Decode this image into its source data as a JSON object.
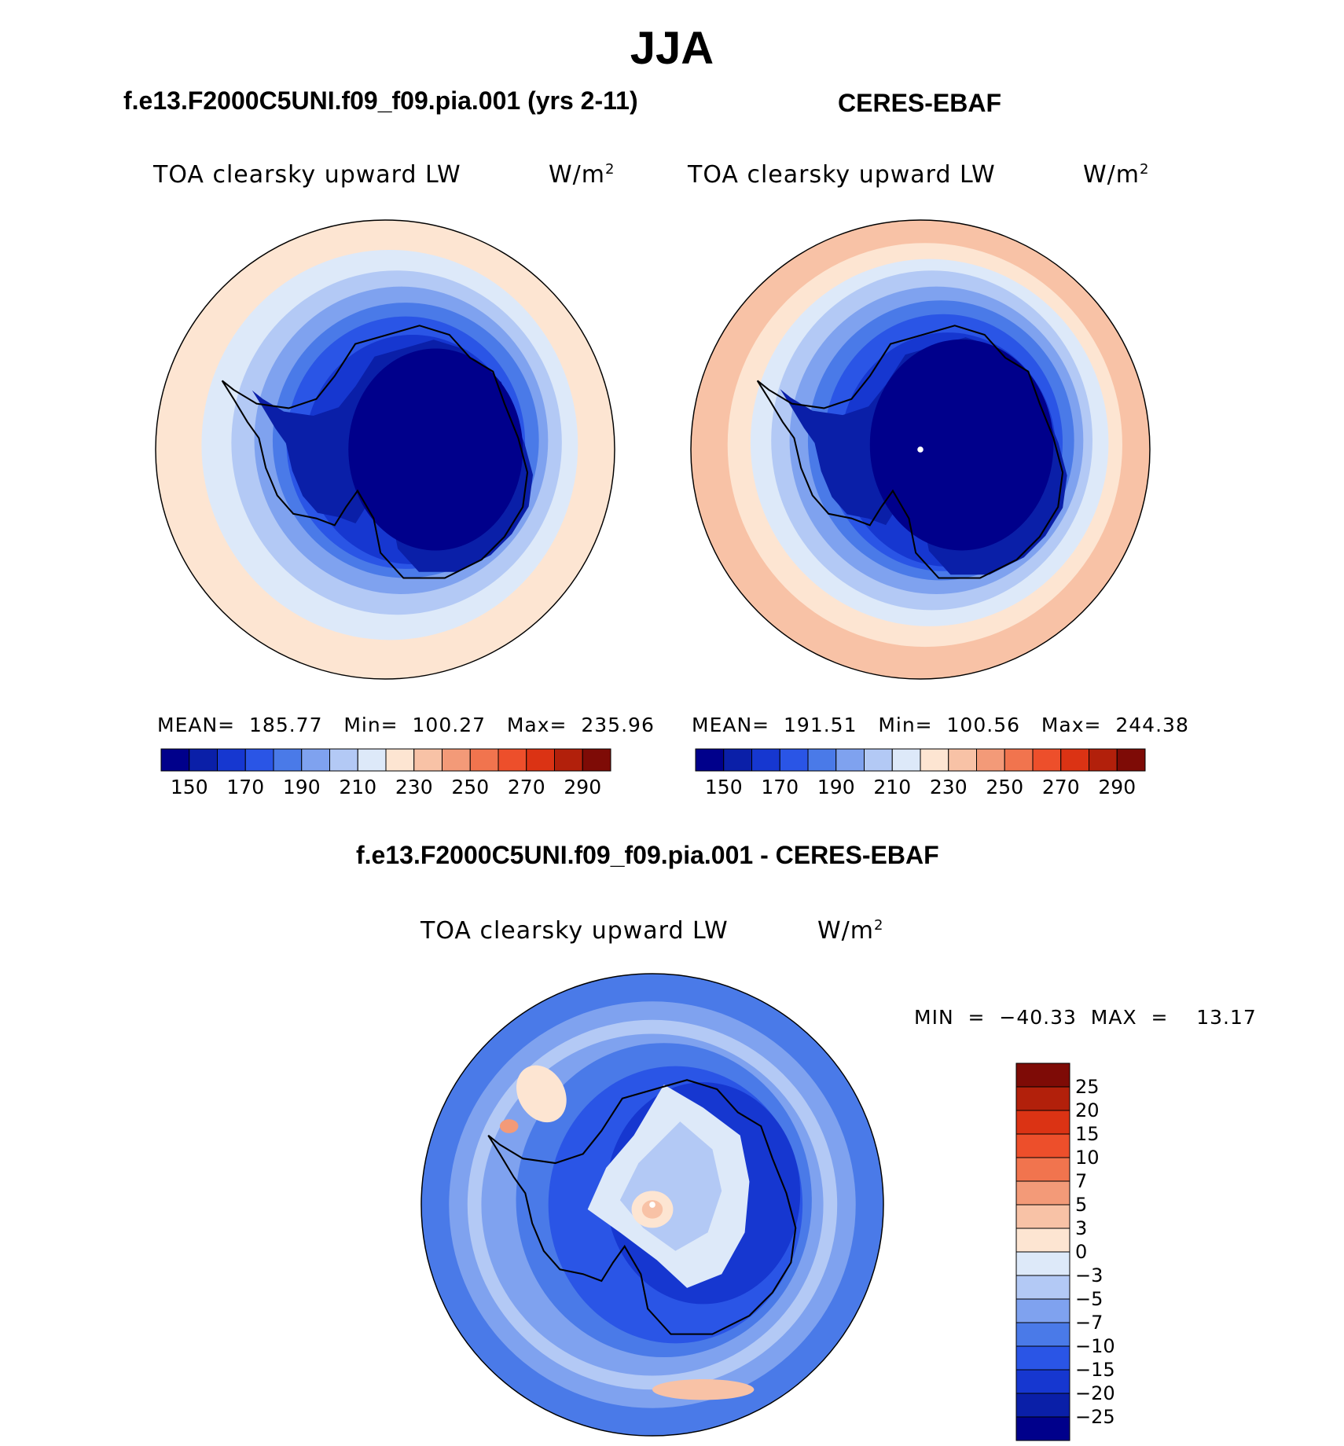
{
  "header": {
    "title": "JJA",
    "left_panel_title": "f.e13.F2000C5UNI.f09_f09.pia.001 (yrs 2-11)",
    "right_panel_title": "CERES-EBAF",
    "diff_panel_title": "f.e13.F2000C5UNI.f09_f09.pia.001 - CERES-EBAF"
  },
  "panels": {
    "model": {
      "variable": "TOA clearsky upward LW",
      "units_base": "W/m",
      "units_exp": "2",
      "stats": "MEAN=  185.77   Min=  100.27   Max=  235.96"
    },
    "obs": {
      "variable": "TOA clearsky upward LW",
      "units_base": "W/m",
      "units_exp": "2",
      "stats": "MEAN=  191.51   Min=  100.56   Max=  244.38"
    },
    "diff": {
      "variable": "TOA clearsky upward LW",
      "units_base": "W/m",
      "units_exp": "2",
      "stats": "MIN  =  −40.33  MAX  =    13.17"
    }
  },
  "colorbars": {
    "abs_labels": [
      "150",
      "170",
      "190",
      "210",
      "230",
      "250",
      "270",
      "290"
    ],
    "abs_colors": [
      "#00008b",
      "#0a1fa8",
      "#1637d0",
      "#2a55e6",
      "#4a7ae8",
      "#7fa2ef",
      "#b3c9f5",
      "#dde9f9",
      "#fde5d2",
      "#f8c2a6",
      "#f39a78",
      "#f1744e",
      "#ed4f2b",
      "#db3314",
      "#b2200b",
      "#7e0b06"
    ],
    "diff_labels": [
      "25",
      "20",
      "15",
      "10",
      "7",
      "5",
      "3",
      "0",
      "−3",
      "−5",
      "−7",
      "−10",
      "−15",
      "−20",
      "−25"
    ],
    "diff_colors": [
      "#7e0b06",
      "#b2200b",
      "#db3314",
      "#ed4f2b",
      "#f1744e",
      "#f39a78",
      "#f8c2a6",
      "#fde5d2",
      "#dde9f9",
      "#b3c9f5",
      "#7fa2ef",
      "#4a7ae8",
      "#2a55e6",
      "#1637d0",
      "#0a1fa8",
      "#00008b"
    ]
  }
}
